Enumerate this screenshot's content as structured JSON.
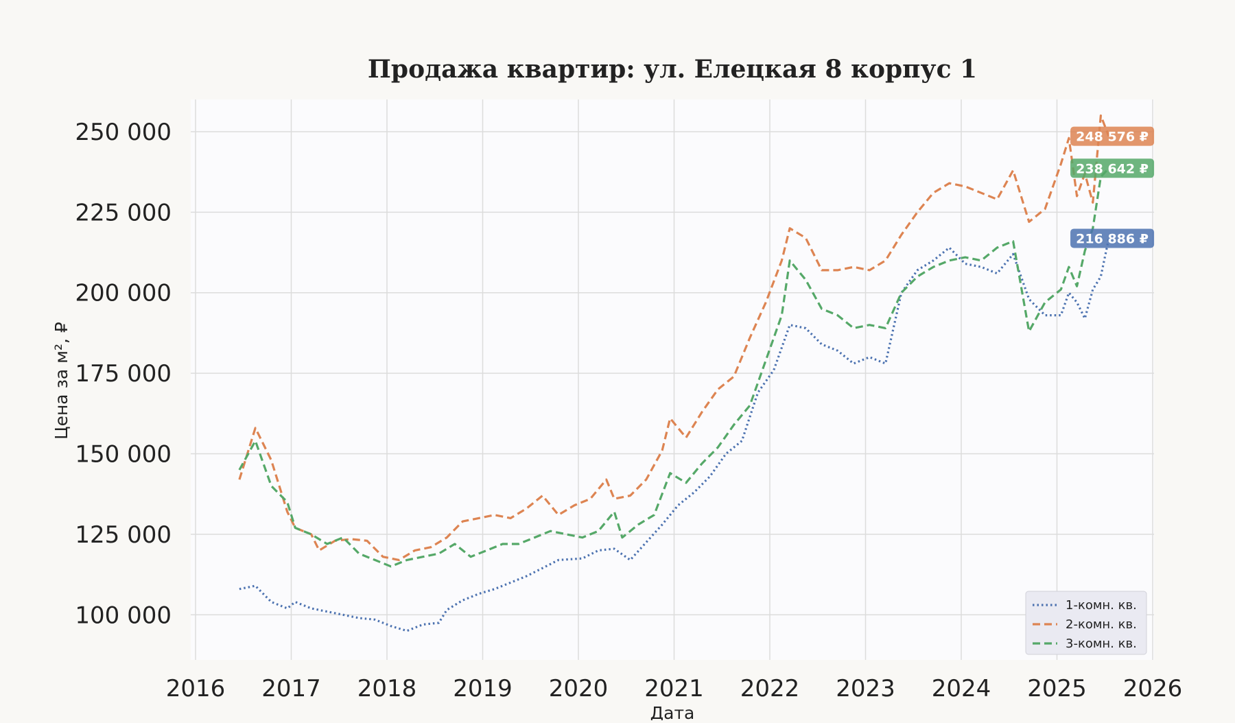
{
  "chart_data": {
    "type": "line",
    "title": "Продажа квартир: ул. Елецкая 8 корпус 1",
    "xlabel": "Дата",
    "ylabel": "Цена за м², ₽",
    "x_ticks": [
      "2016",
      "2017",
      "2018",
      "2019",
      "2020",
      "2021",
      "2022",
      "2023",
      "2024",
      "2025",
      "2026"
    ],
    "y_ticks": [
      "100 000",
      "125 000",
      "150 000",
      "175 000",
      "200 000",
      "225 000",
      "250 000"
    ],
    "xlim": [
      2016.0,
      2026.0
    ],
    "ylim": [
      86000,
      260000
    ],
    "grid": true,
    "legend_position": "bottom-right",
    "series": [
      {
        "name": "1-комн. кв.",
        "color": "#4c72b0",
        "dash": "dotted",
        "last_value_label": "216 886 ₽",
        "points": [
          [
            "2016-06",
            108000
          ],
          [
            "2016-08",
            109000
          ],
          [
            "2016-10",
            104000
          ],
          [
            "2016-12",
            102000
          ],
          [
            "2017-01",
            104000
          ],
          [
            "2017-03",
            102000
          ],
          [
            "2017-06",
            100500
          ],
          [
            "2017-09",
            99000
          ],
          [
            "2017-11",
            98500
          ],
          [
            "2018-01",
            96500
          ],
          [
            "2018-03",
            95000
          ],
          [
            "2018-05",
            97000
          ],
          [
            "2018-07",
            97500
          ],
          [
            "2018-08",
            101500
          ],
          [
            "2018-10",
            104500
          ],
          [
            "2018-12",
            106500
          ],
          [
            "2019-02",
            108000
          ],
          [
            "2019-04",
            110000
          ],
          [
            "2019-06",
            112000
          ],
          [
            "2019-08",
            114500
          ],
          [
            "2019-10",
            117000
          ],
          [
            "2020-01",
            117500
          ],
          [
            "2020-03",
            120000
          ],
          [
            "2020-05",
            120500
          ],
          [
            "2020-07",
            117000
          ],
          [
            "2020-09",
            122500
          ],
          [
            "2020-11",
            128000
          ],
          [
            "2021-01",
            134000
          ],
          [
            "2021-03",
            138000
          ],
          [
            "2021-05",
            143000
          ],
          [
            "2021-07",
            150000
          ],
          [
            "2021-09",
            154000
          ],
          [
            "2021-11",
            169000
          ],
          [
            "2022-01",
            176000
          ],
          [
            "2022-03",
            190000
          ],
          [
            "2022-05",
            189000
          ],
          [
            "2022-07",
            184000
          ],
          [
            "2022-09",
            182000
          ],
          [
            "2022-11",
            178000
          ],
          [
            "2023-01",
            180000
          ],
          [
            "2023-03",
            178000
          ],
          [
            "2023-05",
            200000
          ],
          [
            "2023-07",
            207000
          ],
          [
            "2023-09",
            210000
          ],
          [
            "2023-11",
            214000
          ],
          [
            "2024-01",
            209000
          ],
          [
            "2024-03",
            208000
          ],
          [
            "2024-05",
            206000
          ],
          [
            "2024-07",
            212000
          ],
          [
            "2024-09",
            198000
          ],
          [
            "2024-11",
            193000
          ],
          [
            "2025-01",
            193000
          ],
          [
            "2025-02",
            200000
          ],
          [
            "2025-03",
            197000
          ],
          [
            "2025-04",
            192000
          ],
          [
            "2025-05",
            201000
          ],
          [
            "2025-06",
            205000
          ],
          [
            "2025-07",
            216886
          ]
        ]
      },
      {
        "name": "2-комн. кв.",
        "color": "#dd8452",
        "dash": "dashed",
        "last_value_label": "248 576 ₽",
        "points": [
          [
            "2016-06",
            142000
          ],
          [
            "2016-08",
            158000
          ],
          [
            "2016-10",
            148000
          ],
          [
            "2016-12",
            132000
          ],
          [
            "2017-01",
            127000
          ],
          [
            "2017-03",
            125000
          ],
          [
            "2017-04",
            120000
          ],
          [
            "2017-06",
            123000
          ],
          [
            "2017-08",
            123500
          ],
          [
            "2017-10",
            123000
          ],
          [
            "2017-12",
            118000
          ],
          [
            "2018-02",
            117000
          ],
          [
            "2018-04",
            120000
          ],
          [
            "2018-06",
            121000
          ],
          [
            "2018-08",
            124000
          ],
          [
            "2018-10",
            129000
          ],
          [
            "2018-12",
            130000
          ],
          [
            "2019-02",
            131000
          ],
          [
            "2019-04",
            130000
          ],
          [
            "2019-06",
            133000
          ],
          [
            "2019-08",
            137000
          ],
          [
            "2019-10",
            131000
          ],
          [
            "2019-12",
            134000
          ],
          [
            "2020-02",
            136000
          ],
          [
            "2020-04",
            142000
          ],
          [
            "2020-05",
            136000
          ],
          [
            "2020-07",
            137000
          ],
          [
            "2020-09",
            142000
          ],
          [
            "2020-11",
            151000
          ],
          [
            "2020-12",
            161000
          ],
          [
            "2021-02",
            155000
          ],
          [
            "2021-04",
            163000
          ],
          [
            "2021-06",
            170000
          ],
          [
            "2021-08",
            174000
          ],
          [
            "2021-10",
            186000
          ],
          [
            "2021-12",
            197000
          ],
          [
            "2022-02",
            210000
          ],
          [
            "2022-03",
            220000
          ],
          [
            "2022-05",
            217000
          ],
          [
            "2022-07",
            207000
          ],
          [
            "2022-09",
            207000
          ],
          [
            "2022-11",
            208000
          ],
          [
            "2023-01",
            207000
          ],
          [
            "2023-03",
            210000
          ],
          [
            "2023-05",
            218000
          ],
          [
            "2023-07",
            225000
          ],
          [
            "2023-09",
            231000
          ],
          [
            "2023-11",
            234000
          ],
          [
            "2024-01",
            233000
          ],
          [
            "2024-03",
            231000
          ],
          [
            "2024-05",
            229000
          ],
          [
            "2024-07",
            238000
          ],
          [
            "2024-09",
            222000
          ],
          [
            "2024-11",
            226000
          ],
          [
            "2025-01",
            240000
          ],
          [
            "2025-02",
            248000
          ],
          [
            "2025-03",
            230000
          ],
          [
            "2025-04",
            237000
          ],
          [
            "2025-05",
            228000
          ],
          [
            "2025-06",
            255000
          ],
          [
            "2025-07",
            248576
          ]
        ]
      },
      {
        "name": "3-комн. кв.",
        "color": "#55a868",
        "dash": "dashed",
        "last_value_label": "238 642 ₽",
        "points": [
          [
            "2016-06",
            145000
          ],
          [
            "2016-08",
            154000
          ],
          [
            "2016-10",
            140000
          ],
          [
            "2016-12",
            135000
          ],
          [
            "2017-01",
            127000
          ],
          [
            "2017-03",
            125000
          ],
          [
            "2017-05",
            122000
          ],
          [
            "2017-07",
            124000
          ],
          [
            "2017-09",
            119000
          ],
          [
            "2017-11",
            117000
          ],
          [
            "2018-01",
            115000
          ],
          [
            "2018-03",
            117000
          ],
          [
            "2018-05",
            118000
          ],
          [
            "2018-07",
            119000
          ],
          [
            "2018-09",
            122000
          ],
          [
            "2018-11",
            118000
          ],
          [
            "2019-01",
            120000
          ],
          [
            "2019-03",
            122000
          ],
          [
            "2019-05",
            122000
          ],
          [
            "2019-07",
            124000
          ],
          [
            "2019-09",
            126000
          ],
          [
            "2019-11",
            125000
          ],
          [
            "2020-01",
            124000
          ],
          [
            "2020-03",
            126000
          ],
          [
            "2020-05",
            132000
          ],
          [
            "2020-06",
            124000
          ],
          [
            "2020-08",
            128000
          ],
          [
            "2020-10",
            131000
          ],
          [
            "2020-12",
            144000
          ],
          [
            "2021-02",
            141000
          ],
          [
            "2021-04",
            147000
          ],
          [
            "2021-06",
            152000
          ],
          [
            "2021-08",
            159000
          ],
          [
            "2021-10",
            165000
          ],
          [
            "2021-12",
            179000
          ],
          [
            "2022-02",
            193000
          ],
          [
            "2022-03",
            210000
          ],
          [
            "2022-05",
            204000
          ],
          [
            "2022-07",
            195000
          ],
          [
            "2022-09",
            193000
          ],
          [
            "2022-11",
            189000
          ],
          [
            "2023-01",
            190000
          ],
          [
            "2023-03",
            189000
          ],
          [
            "2023-05",
            200000
          ],
          [
            "2023-07",
            205000
          ],
          [
            "2023-09",
            208000
          ],
          [
            "2023-11",
            210000
          ],
          [
            "2024-01",
            211000
          ],
          [
            "2024-03",
            210000
          ],
          [
            "2024-05",
            214000
          ],
          [
            "2024-07",
            216000
          ],
          [
            "2024-09",
            188000
          ],
          [
            "2024-11",
            197000
          ],
          [
            "2025-01",
            201000
          ],
          [
            "2025-02",
            208000
          ],
          [
            "2025-03",
            202000
          ],
          [
            "2025-04",
            213000
          ],
          [
            "2025-05",
            220000
          ],
          [
            "2025-06",
            236000
          ],
          [
            "2025-07",
            238642
          ]
        ]
      }
    ]
  }
}
